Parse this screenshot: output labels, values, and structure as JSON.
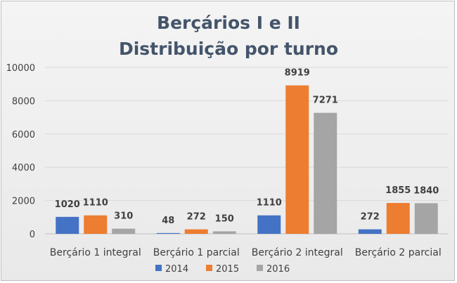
{
  "chart_data": {
    "type": "bar",
    "title": [
      "Berçários I e II",
      "Distribuição por turno"
    ],
    "categories": [
      "Berçário 1 integral",
      "Berçário 1 parcial",
      "Berçário 2 integral",
      "Berçário 2 parcial"
    ],
    "series": [
      {
        "name": "2014",
        "color": "#4472c4",
        "values": [
          1020,
          48,
          1110,
          272
        ]
      },
      {
        "name": "2015",
        "color": "#ed7d31",
        "values": [
          1110,
          272,
          8919,
          1855
        ]
      },
      {
        "name": "2016",
        "color": "#a5a5a5",
        "values": [
          310,
          150,
          7271,
          1840
        ]
      }
    ],
    "ylim": [
      0,
      10000
    ],
    "yticks": [
      0,
      2000,
      4000,
      6000,
      8000,
      10000
    ],
    "grid": true,
    "legend_position": "bottom"
  }
}
